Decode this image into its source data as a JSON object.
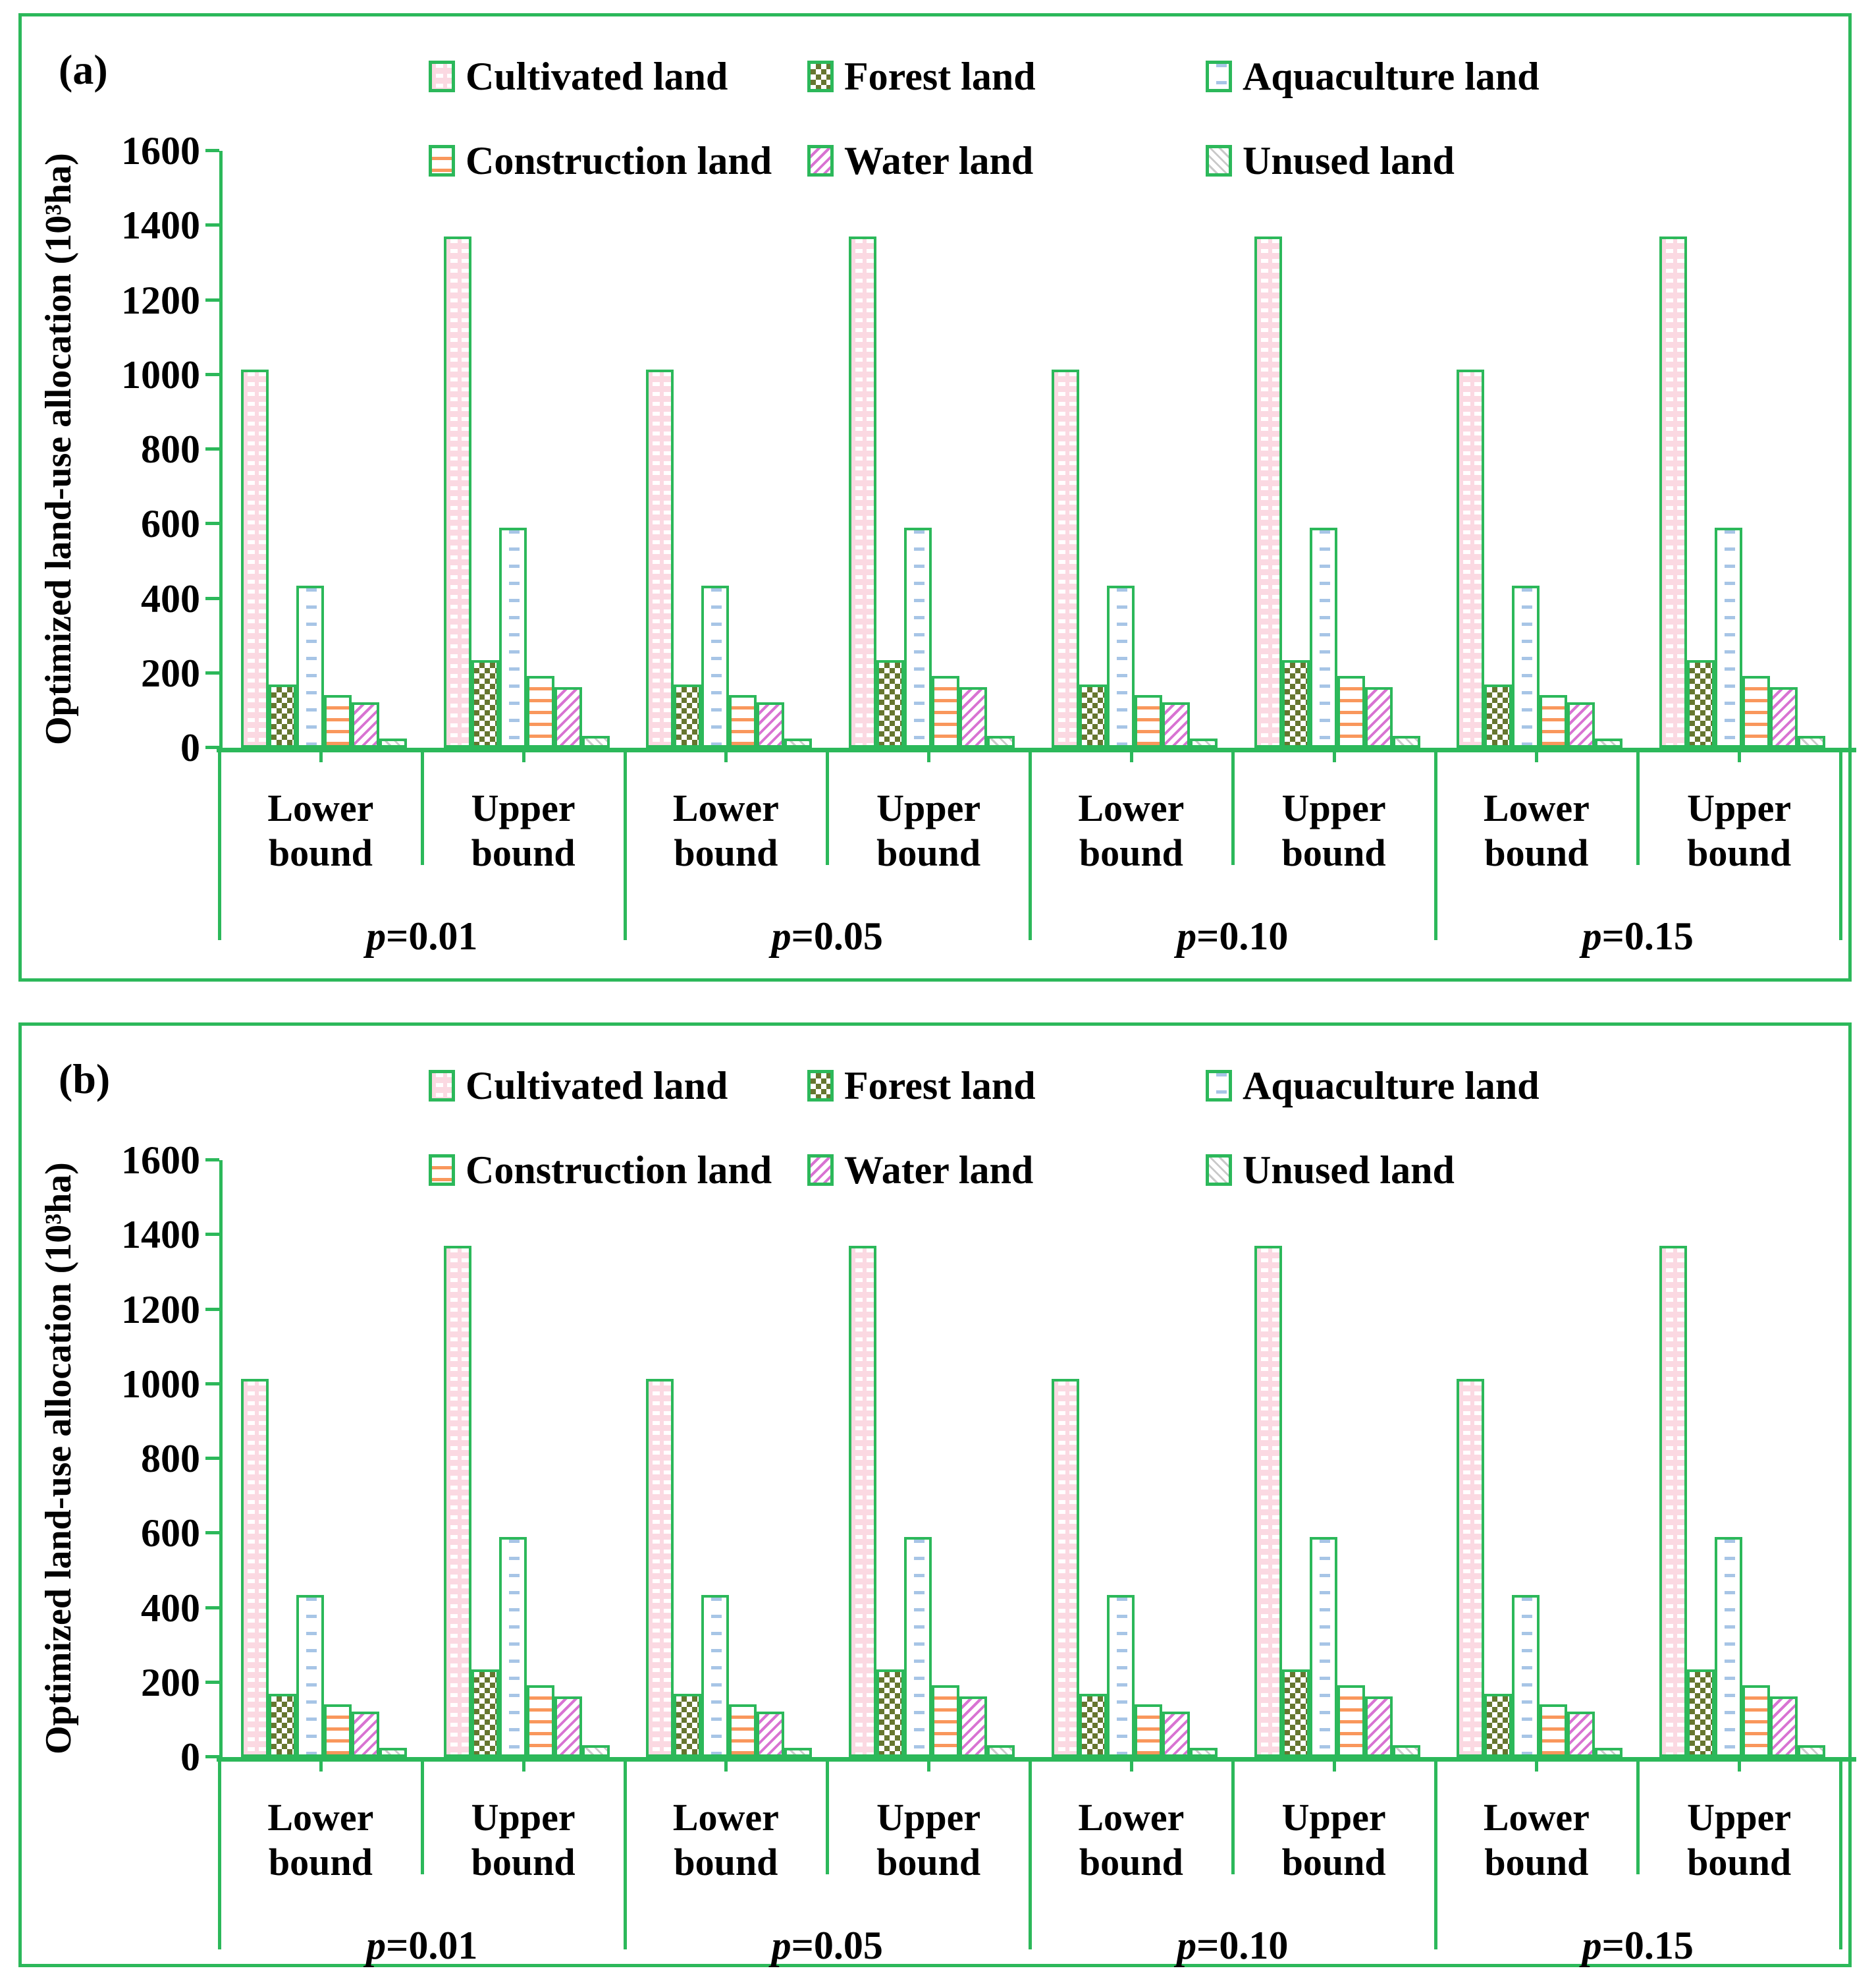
{
  "figure": {
    "accent_green": "#2cb85a",
    "panels": [
      {
        "label": "(a)"
      },
      {
        "label": "(b)"
      }
    ]
  },
  "legend": {
    "items": [
      {
        "label": "Cultivated land",
        "pattern": "cultivated"
      },
      {
        "label": "Forest land",
        "pattern": "forest"
      },
      {
        "label": "Aquaculture land",
        "pattern": "aquaculture"
      },
      {
        "label": "Construction land",
        "pattern": "construction"
      },
      {
        "label": "Water land",
        "pattern": "water"
      },
      {
        "label": "Unused land",
        "pattern": "unused"
      }
    ]
  },
  "y_axis": {
    "title": "Optimized land-use allocation (10³ha)",
    "min": 0,
    "max": 1600,
    "tick_step": 200,
    "tick_labels": [
      "0",
      "200",
      "400",
      "600",
      "800",
      "1000",
      "1200",
      "1400",
      "1600"
    ]
  },
  "x_axis": {
    "group_prefix": "p",
    "groups": [
      "=0.01",
      "=0.05",
      "=0.10",
      "=0.15"
    ],
    "subgroups": [
      {
        "line1": "Lower",
        "line2": "bound"
      },
      {
        "line1": "Upper",
        "line2": "bound"
      }
    ]
  },
  "chart_data": [
    {
      "panel": "(a)",
      "type": "bar",
      "ylabel": "Optimized land-use allocation (10³ha)",
      "ylim": [
        0,
        1600
      ],
      "grid": false,
      "legend_position": "top",
      "groups": [
        "p=0.01",
        "p=0.05",
        "p=0.10",
        "p=0.15"
      ],
      "subgroups": [
        "Lower bound",
        "Upper bound"
      ],
      "series": [
        {
          "name": "Cultivated land",
          "pattern": "cultivated",
          "lower": [
            1013,
            1013,
            1013,
            1013
          ],
          "upper": [
            1370,
            1370,
            1370,
            1370
          ]
        },
        {
          "name": "Forest land",
          "pattern": "forest",
          "lower": [
            170,
            170,
            170,
            170
          ],
          "upper": [
            235,
            235,
            235,
            235
          ]
        },
        {
          "name": "Aquaculture land",
          "pattern": "aquaculture",
          "lower": [
            435,
            435,
            435,
            435
          ],
          "upper": [
            590,
            590,
            590,
            590
          ]
        },
        {
          "name": "Construction land",
          "pattern": "construction",
          "lower": [
            141,
            141,
            141,
            141
          ],
          "upper": [
            192,
            192,
            192,
            192
          ]
        },
        {
          "name": "Water land",
          "pattern": "water",
          "lower": [
            122,
            122,
            122,
            122
          ],
          "upper": [
            163,
            163,
            163,
            163
          ]
        },
        {
          "name": "Unused land",
          "pattern": "unused",
          "lower": [
            25,
            25,
            25,
            25
          ],
          "upper": [
            32,
            32,
            32,
            32
          ]
        }
      ]
    },
    {
      "panel": "(b)",
      "type": "bar",
      "ylabel": "Optimized land-use allocation (10³ha)",
      "ylim": [
        0,
        1600
      ],
      "grid": false,
      "legend_position": "top",
      "groups": [
        "p=0.01",
        "p=0.05",
        "p=0.10",
        "p=0.15"
      ],
      "subgroups": [
        "Lower bound",
        "Upper bound"
      ],
      "series": [
        {
          "name": "Cultivated land",
          "pattern": "cultivated",
          "lower": [
            1013,
            1013,
            1013,
            1013
          ],
          "upper": [
            1370,
            1370,
            1370,
            1370
          ]
        },
        {
          "name": "Forest land",
          "pattern": "forest",
          "lower": [
            170,
            170,
            170,
            170
          ],
          "upper": [
            235,
            235,
            235,
            235
          ]
        },
        {
          "name": "Aquaculture land",
          "pattern": "aquaculture",
          "lower": [
            435,
            435,
            435,
            435
          ],
          "upper": [
            590,
            590,
            590,
            590
          ]
        },
        {
          "name": "Construction land",
          "pattern": "construction",
          "lower": [
            141,
            141,
            141,
            141
          ],
          "upper": [
            192,
            192,
            192,
            192
          ]
        },
        {
          "name": "Water land",
          "pattern": "water",
          "lower": [
            122,
            122,
            122,
            122
          ],
          "upper": [
            163,
            163,
            163,
            163
          ]
        },
        {
          "name": "Unused land",
          "pattern": "unused",
          "lower": [
            25,
            25,
            25,
            25
          ],
          "upper": [
            32,
            32,
            32,
            32
          ]
        }
      ]
    }
  ]
}
